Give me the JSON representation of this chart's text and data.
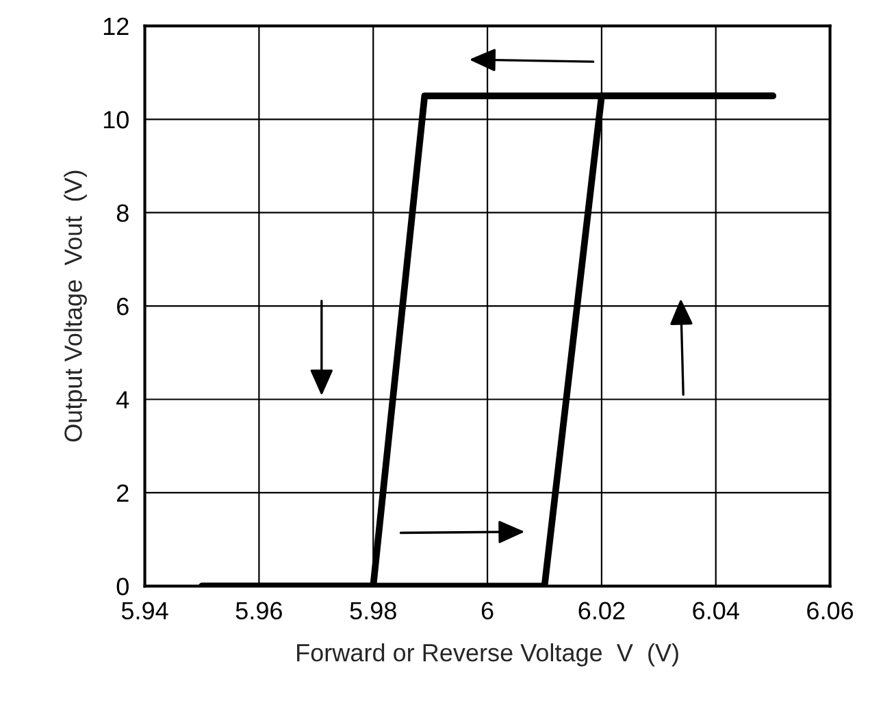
{
  "chart_data": {
    "type": "line",
    "xlabel": "Forward or Reverse Voltage  V  (V)",
    "ylabel": "Output Voltage  Vout  (V)",
    "series": [
      {
        "color": "#000000",
        "x": [
          5.95,
          6.01,
          6.02,
          6.05
        ],
        "values": [
          0,
          0,
          10.5,
          10.5
        ]
      },
      {
        "color": "#000000",
        "x": [
          6.05,
          5.989,
          5.98,
          5.95
        ],
        "values": [
          10.5,
          10.5,
          0,
          0
        ]
      }
    ],
    "xlim": [
      5.94,
      6.06
    ],
    "xticks": [
      5.94,
      5.96,
      5.98,
      6,
      6.02,
      6.04,
      6.06
    ],
    "ylim": [
      0,
      12
    ],
    "yticks": [
      0,
      2,
      4,
      6,
      8,
      10,
      12
    ],
    "grid": true,
    "line_style": "solid",
    "marker": "none"
  }
}
